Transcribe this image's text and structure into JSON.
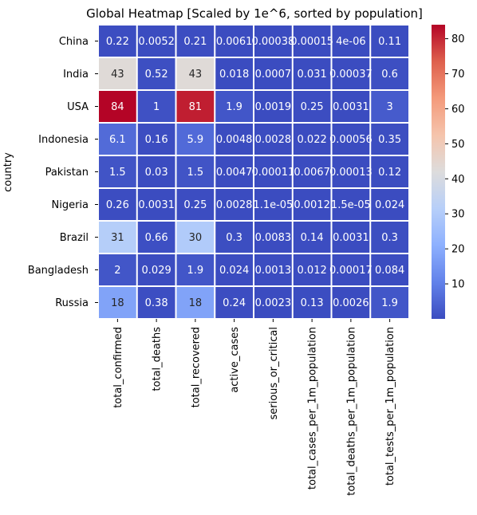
{
  "chart_data": {
    "type": "heatmap",
    "title": "Global Heatmap [Scaled by 1e^6, sorted by population]",
    "ylabel": "country",
    "xlabel": "",
    "rows": [
      "China",
      "India",
      "USA",
      "Indonesia",
      "Pakistan",
      "Nigeria",
      "Brazil",
      "Bangladesh",
      "Russia"
    ],
    "columns": [
      "total_confirmed",
      "total_deaths",
      "total_recovered",
      "active_cases",
      "serious_or_critical",
      "total_cases_per_1m_population",
      "total_deaths_per_1m_population",
      "total_tests_per_1m_population"
    ],
    "values": [
      [
        0.22,
        0.0052,
        0.21,
        0.0061,
        0.00038,
        0.00015,
        4e-06,
        0.11
      ],
      [
        43,
        0.52,
        43,
        0.018,
        0.0007,
        0.031,
        0.00037,
        0.6
      ],
      [
        84,
        1,
        81,
        1.9,
        0.0019,
        0.25,
        0.0031,
        3
      ],
      [
        6.1,
        0.16,
        5.9,
        0.0048,
        0.0028,
        0.022,
        0.00056,
        0.35
      ],
      [
        1.5,
        0.03,
        1.5,
        0.0047,
        0.00011,
        0.0067,
        0.00013,
        0.12
      ],
      [
        0.26,
        0.0031,
        0.25,
        0.0028,
        1.1e-05,
        0.0012,
        1.5e-05,
        0.024
      ],
      [
        31,
        0.66,
        30,
        0.3,
        0.0083,
        0.14,
        0.0031,
        0.3
      ],
      [
        2,
        0.029,
        1.9,
        0.024,
        0.0013,
        0.012,
        0.00017,
        0.084
      ],
      [
        18,
        0.38,
        18,
        0.24,
        0.0023,
        0.13,
        0.0026,
        1.9
      ]
    ],
    "annotations": [
      [
        "0.22",
        "0.0052",
        "0.21",
        "0.0061",
        "0.00038",
        "0.00015",
        "4e-06",
        "0.11"
      ],
      [
        "43",
        "0.52",
        "43",
        "0.018",
        "0.0007",
        "0.031",
        "0.00037",
        "0.6"
      ],
      [
        "84",
        "1",
        "81",
        "1.9",
        "0.0019",
        "0.25",
        "0.0031",
        "3"
      ],
      [
        "6.1",
        "0.16",
        "5.9",
        "0.0048",
        "0.0028",
        "0.022",
        "0.00056",
        "0.35"
      ],
      [
        "1.5",
        "0.03",
        "1.5",
        "0.0047",
        "0.00011",
        "0.0067",
        "0.00013",
        "0.12"
      ],
      [
        "0.26",
        "0.0031",
        "0.25",
        "0.0028",
        "1.1e-05",
        "0.0012",
        "1.5e-05",
        "0.024"
      ],
      [
        "31",
        "0.66",
        "30",
        "0.3",
        "0.0083",
        "0.14",
        "0.0031",
        "0.3"
      ],
      [
        "2",
        "0.029",
        "1.9",
        "0.024",
        "0.0013",
        "0.012",
        "0.00017",
        "0.084"
      ],
      [
        "18",
        "0.38",
        "18",
        "0.24",
        "0.0023",
        "0.13",
        "0.0026",
        "1.9"
      ]
    ],
    "colormap": "coolwarm",
    "color_range": [
      0,
      84
    ],
    "colorbar_ticks": [
      10,
      20,
      30,
      40,
      50,
      60,
      70,
      80
    ],
    "cell_separator_color": "#ffffff",
    "colormap_stops": [
      "#3b4cc0",
      "#6282ea",
      "#8db0fe",
      "#b7cff9",
      "#dddcdc",
      "#f5c4ac",
      "#f49a7b",
      "#de604d",
      "#b40426"
    ]
  }
}
